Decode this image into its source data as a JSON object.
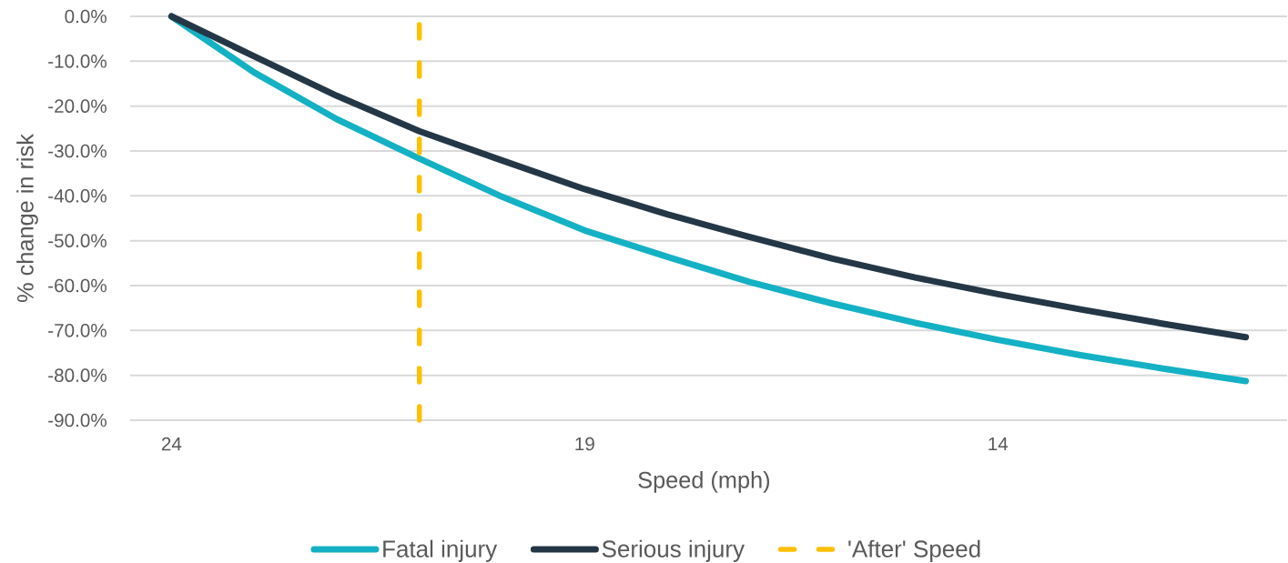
{
  "chart_data": {
    "type": "line",
    "xlabel": "Speed (mph)",
    "ylabel": "% change in risk",
    "x": [
      24,
      23,
      22,
      21,
      20,
      19,
      18,
      17,
      16,
      15,
      14,
      13,
      12,
      11
    ],
    "series": [
      {
        "name": "Fatal injury",
        "color": "#14b1c4",
        "values": [
          0,
          -12.5,
          -22.9,
          -31.7,
          -40.2,
          -47.7,
          -53.6,
          -59.2,
          -64.0,
          -68.3,
          -72.1,
          -75.5,
          -78.5,
          -81.3
        ]
      },
      {
        "name": "Serious injury",
        "color": "#243746",
        "values": [
          0,
          -8.9,
          -17.7,
          -25.6,
          -32.1,
          -38.5,
          -44.1,
          -49.2,
          -54.0,
          -58.2,
          -61.9,
          -65.3,
          -68.5,
          -71.5
        ]
      }
    ],
    "xlim": [
      24.5,
      10.5
    ],
    "xticks": [
      24,
      19,
      14
    ],
    "ylim": [
      -90,
      0
    ],
    "yticks": [
      {
        "value": 0,
        "label": "0.0%"
      },
      {
        "value": -10,
        "label": "-10.0%"
      },
      {
        "value": -20,
        "label": "-20.0%"
      },
      {
        "value": -30,
        "label": "-30.0%"
      },
      {
        "value": -40,
        "label": "-40.0%"
      },
      {
        "value": -50,
        "label": "-50.0%"
      },
      {
        "value": -60,
        "label": "-60.0%"
      },
      {
        "value": -70,
        "label": "-70.0%"
      },
      {
        "value": -80,
        "label": "-80.0%"
      },
      {
        "value": -90,
        "label": "-90.0%"
      }
    ],
    "ref_lines": [
      {
        "axis": "x",
        "value": 21,
        "label": "'After' Speed",
        "color": "#ffc000",
        "line_style": "dashed"
      }
    ],
    "grid": "y",
    "legend": "bottom",
    "marker": "none",
    "line_style": "solid"
  }
}
